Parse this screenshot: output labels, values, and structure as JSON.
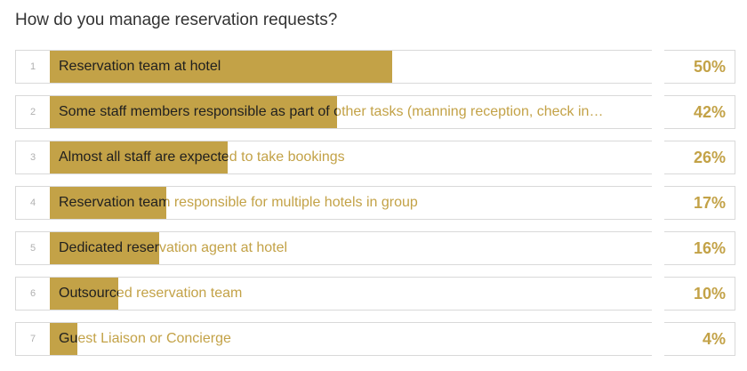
{
  "title": "How do you manage reservation requests?",
  "colors": {
    "bar": "#c3a247",
    "text_on_bar": "#1f1f1f",
    "text_off_bar": "#c3a247"
  },
  "chart_data": {
    "type": "bar",
    "orientation": "horizontal",
    "title": "How do you manage reservation requests?",
    "xlim": [
      0,
      100
    ],
    "categories": [
      "Reservation team at hotel",
      "Some staff members responsible as part of other tasks (manning reception, check in…",
      "Almost all staff are expected to take bookings",
      "Reservation team responsible for multiple hotels in group",
      "Dedicated reservation agent at hotel",
      "Outsourced reservation team",
      "Guest Liaison or Concierge"
    ],
    "ranks": [
      "1",
      "2",
      "3",
      "4",
      "5",
      "6",
      "7"
    ],
    "values": [
      50,
      42,
      26,
      17,
      16,
      10,
      4
    ],
    "value_labels": [
      "50%",
      "42%",
      "26%",
      "17%",
      "16%",
      "10%",
      "4%"
    ]
  }
}
